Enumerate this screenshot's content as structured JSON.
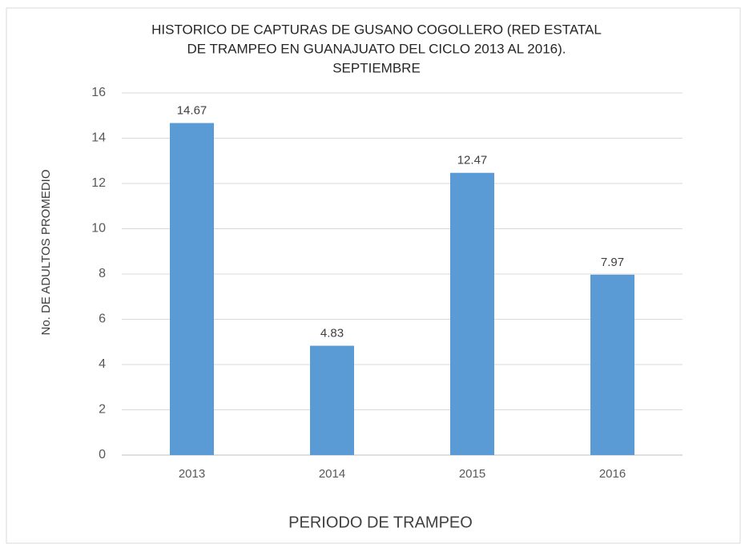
{
  "chart_data": {
    "type": "bar",
    "title": [
      "HISTORICO DE CAPTURAS DE GUSANO COGOLLERO (RED ESTATAL",
      "DE TRAMPEO EN GUANAJUATO DEL CICLO 2013 AL 2016).",
      "SEPTIEMBRE"
    ],
    "y_label": "No. DE ADULTOS PROMEDIO",
    "x_label": "PERIODO DE TRAMPEO",
    "categories": [
      "2013",
      "2014",
      "2015",
      "2016"
    ],
    "values": [
      14.67,
      4.83,
      12.47,
      7.97
    ],
    "color": "#5b9bd5",
    "ylim": [
      0,
      16
    ],
    "yticks": [
      0,
      2,
      4,
      6,
      8,
      10,
      12,
      14,
      16
    ],
    "grid": true
  }
}
